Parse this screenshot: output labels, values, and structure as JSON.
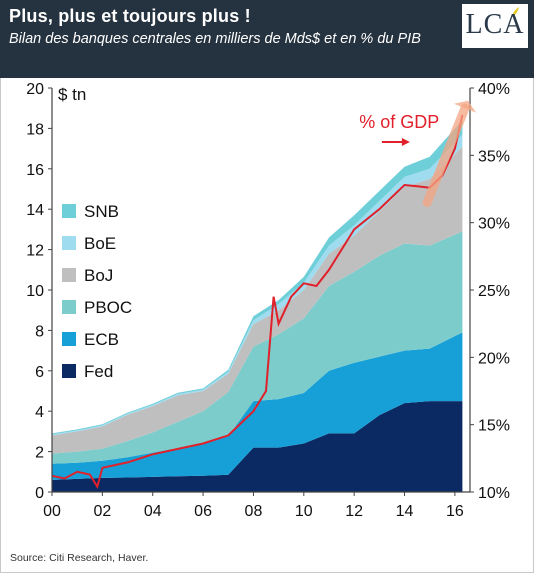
{
  "header": {
    "title": "Plus, plus et toujours plus !",
    "subtitle": "Bilan des banques centrales en milliers de Mds$ et en % du PIB",
    "logo": "LCA"
  },
  "colors": {
    "header_bg": "#25323f",
    "Fed": "#0b2a63",
    "ECB": "#17a0d8",
    "PBOC": "#7ccccb",
    "BoJ": "#bfbfbf",
    "BoE": "#9fdcef",
    "SNB": "#6fcfd9",
    "pct_line": "#e0202a",
    "arrow": "#f4a582"
  },
  "chart_data": {
    "type": "area",
    "x": [
      2000,
      2001,
      2002,
      2003,
      2004,
      2005,
      2006,
      2007,
      2008,
      2009,
      2010,
      2011,
      2012,
      2013,
      2014,
      2015,
      2016.3
    ],
    "xlabel": "",
    "x_tick_labels": [
      "00",
      "02",
      "04",
      "06",
      "08",
      "10",
      "12",
      "14",
      "16"
    ],
    "ylabel_left": "$ tn",
    "ylim_left": [
      0,
      20
    ],
    "y_ticks_left": [
      "0",
      "2",
      "4",
      "6",
      "8",
      "10",
      "12",
      "14",
      "16",
      "18",
      "20"
    ],
    "ylim_right": [
      10,
      40
    ],
    "y_ticks_right": [
      "10%",
      "15%",
      "20%",
      "25%",
      "30%",
      "35%",
      "40%"
    ],
    "stacked": true,
    "series": [
      {
        "name": "Fed",
        "values": [
          0.6,
          0.65,
          0.7,
          0.72,
          0.75,
          0.78,
          0.8,
          0.85,
          2.2,
          2.2,
          2.4,
          2.9,
          2.9,
          3.8,
          4.4,
          4.5,
          4.5
        ]
      },
      {
        "name": "ECB",
        "values": [
          0.8,
          0.8,
          0.85,
          1.0,
          1.2,
          1.4,
          1.6,
          1.9,
          2.3,
          2.4,
          2.5,
          3.1,
          3.5,
          2.9,
          2.6,
          2.6,
          3.4
        ]
      },
      {
        "name": "PBOC",
        "values": [
          0.5,
          0.55,
          0.6,
          0.8,
          1.0,
          1.3,
          1.6,
          2.2,
          2.7,
          3.2,
          3.7,
          4.2,
          4.5,
          5.0,
          5.3,
          5.1,
          5.0
        ]
      },
      {
        "name": "BoJ",
        "values": [
          0.9,
          1.0,
          1.1,
          1.3,
          1.3,
          1.3,
          1.0,
          0.9,
          1.1,
          1.2,
          1.4,
          1.6,
          1.8,
          2.2,
          2.8,
          3.3,
          4.2
        ]
      },
      {
        "name": "BoE",
        "values": [
          0.05,
          0.05,
          0.05,
          0.06,
          0.06,
          0.07,
          0.07,
          0.1,
          0.2,
          0.3,
          0.35,
          0.4,
          0.5,
          0.5,
          0.5,
          0.5,
          0.6
        ]
      },
      {
        "name": "SNB",
        "values": [
          0.05,
          0.05,
          0.05,
          0.05,
          0.06,
          0.06,
          0.06,
          0.1,
          0.2,
          0.2,
          0.3,
          0.4,
          0.5,
          0.5,
          0.5,
          0.6,
          0.7
        ]
      }
    ],
    "line": {
      "name": "% of GDP",
      "axis": "right",
      "x": [
        2000,
        2000.5,
        2001,
        2001.5,
        2001.8,
        2002,
        2003,
        2004,
        2005,
        2006,
        2007,
        2008,
        2008.5,
        2008.8,
        2009,
        2009.5,
        2010,
        2010.5,
        2011,
        2012,
        2013,
        2014,
        2014.5,
        2015,
        2015.5,
        2016,
        2016.3
      ],
      "values": [
        11.2,
        11.0,
        11.5,
        11.3,
        10.4,
        11.8,
        12.2,
        12.8,
        13.2,
        13.6,
        14.2,
        16.0,
        17.5,
        24.5,
        22.5,
        24.5,
        25.5,
        25.3,
        26.5,
        29.5,
        31.0,
        32.8,
        32.7,
        32.6,
        33.5,
        35.5,
        38.0
      ]
    },
    "annotation": "% of GDP",
    "legend": "left",
    "legend_order": [
      "SNB",
      "BoE",
      "BoJ",
      "PBOC",
      "ECB",
      "Fed"
    ],
    "grid": false,
    "source": "Source: Citi Research, Haver."
  }
}
